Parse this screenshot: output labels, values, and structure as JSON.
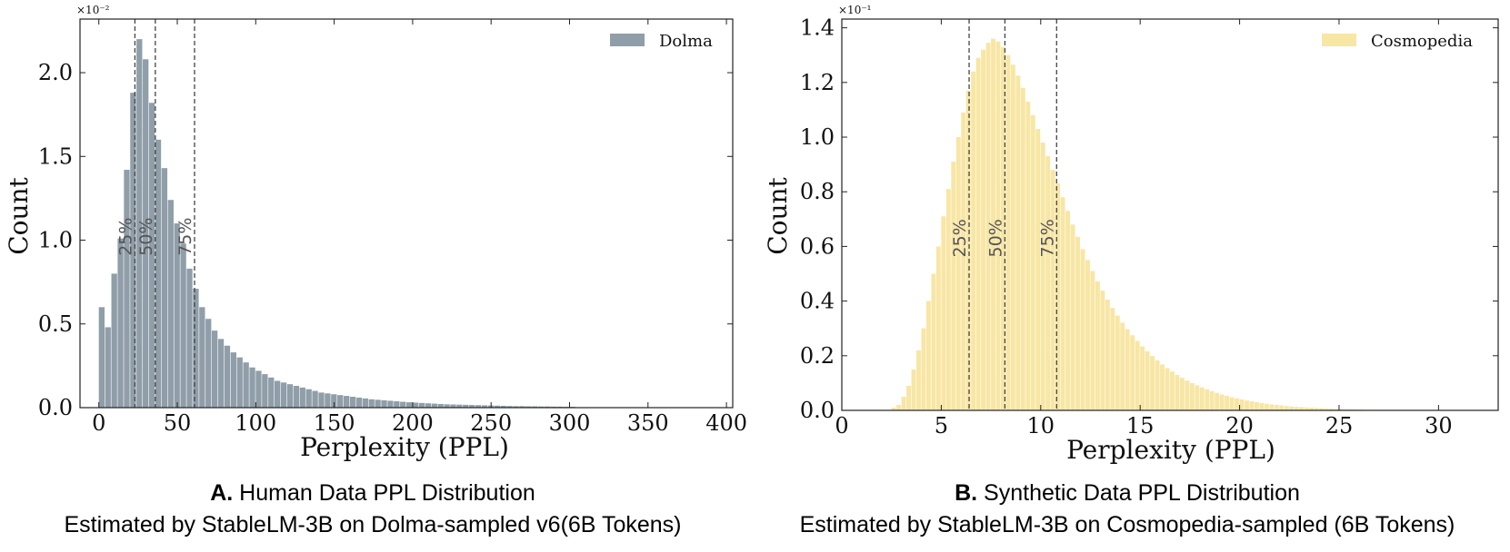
{
  "chart_data": [
    {
      "type": "bar",
      "legend": "Dolma",
      "legend_position": "top-right",
      "color": "#8f9ea8",
      "xlabel": "Perplexity (PPL)",
      "ylabel": "Count",
      "y_multiplier": "×10⁻²",
      "xlim": [
        -12,
        404
      ],
      "ylim": [
        0,
        0.0232
      ],
      "x_ticks": [
        0,
        50,
        100,
        150,
        200,
        250,
        300,
        350,
        400
      ],
      "y_ticks": [
        0.0,
        0.5,
        1.0,
        1.5,
        2.0
      ],
      "y_tick_scale": 0.01,
      "bin_start": 0,
      "bin_width": 4,
      "values": [
        0.006,
        0.0048,
        0.008,
        0.0101,
        0.0142,
        0.0188,
        0.022,
        0.0208,
        0.0182,
        0.016,
        0.0143,
        0.0124,
        0.011,
        0.0098,
        0.0083,
        0.0071,
        0.006,
        0.0053,
        0.0046,
        0.0041,
        0.0037,
        0.0033,
        0.003,
        0.0027,
        0.0024,
        0.0022,
        0.002,
        0.0018,
        0.0016,
        0.0015,
        0.0014,
        0.0013,
        0.0012,
        0.0011,
        0.001,
        0.0009,
        0.00085,
        0.0008,
        0.00075,
        0.0007,
        0.00065,
        0.0006,
        0.00055,
        0.0005,
        0.00047,
        0.00044,
        0.00041,
        0.00038,
        0.00035,
        0.00032,
        0.0003,
        0.00028,
        0.00026,
        0.00024,
        0.00022,
        0.0002,
        0.00019,
        0.00018,
        0.00017,
        0.00016,
        0.00015,
        0.00014,
        0.00013,
        0.00012,
        0.00011,
        0.0001,
        9e-05,
        9e-05,
        8e-05,
        8e-05,
        7e-05,
        7e-05,
        6e-05,
        6e-05,
        5e-05,
        5e-05
      ],
      "quantiles": [
        {
          "label": "25%",
          "x": 23
        },
        {
          "label": "50%",
          "x": 36
        },
        {
          "label": "75%",
          "x": 61
        }
      ],
      "caption_letter": "A.",
      "caption_title": "Human Data PPL Distribution",
      "caption_sub": "Estimated by StableLM-3B on Dolma-sampled v6(6B Tokens)"
    },
    {
      "type": "bar",
      "legend": "Cosmopedia",
      "legend_position": "top-right",
      "color": "#f8e6a4",
      "xlabel": "Perplexity (PPL)",
      "ylabel": "Count",
      "y_multiplier": "×10⁻¹",
      "xlim": [
        0,
        33
      ],
      "ylim": [
        0,
        0.1432
      ],
      "x_ticks": [
        0,
        5,
        10,
        15,
        20,
        25,
        30
      ],
      "y_ticks": [
        0.0,
        0.2,
        0.4,
        0.6,
        0.8,
        1.0,
        1.2,
        1.4
      ],
      "y_tick_scale": 0.1,
      "bin_start": 2.5,
      "bin_width": 0.25,
      "values": [
        0.001,
        0.002,
        0.005,
        0.009,
        0.015,
        0.022,
        0.03,
        0.04,
        0.05,
        0.06,
        0.071,
        0.081,
        0.091,
        0.1,
        0.109,
        0.117,
        0.124,
        0.129,
        0.132,
        0.1345,
        0.136,
        0.135,
        0.133,
        0.13,
        0.1265,
        0.1225,
        0.118,
        0.113,
        0.108,
        0.103,
        0.098,
        0.093,
        0.088,
        0.083,
        0.078,
        0.073,
        0.068,
        0.0635,
        0.059,
        0.055,
        0.051,
        0.0472,
        0.0438,
        0.0405,
        0.0375,
        0.0347,
        0.0321,
        0.0297,
        0.0275,
        0.0254,
        0.0234,
        0.0216,
        0.0199,
        0.0183,
        0.0168,
        0.0155,
        0.0142,
        0.013,
        0.0119,
        0.0109,
        0.01,
        0.0092,
        0.0084,
        0.0077,
        0.007,
        0.0064,
        0.0058,
        0.0053,
        0.0048,
        0.0044,
        0.004,
        0.0036,
        0.0033,
        0.003,
        0.0027,
        0.0024,
        0.0022,
        0.002,
        0.0018,
        0.0016,
        0.0014,
        0.0013,
        0.0012,
        0.0011,
        0.001,
        0.0009,
        0.0008,
        0.0007,
        0.0006,
        0.0005,
        0.0005,
        0.0004,
        0.0004,
        0.0003,
        0.0003,
        0.0002,
        0.0002,
        0.0002,
        0.0001,
        0.0001,
        0.0001
      ],
      "quantiles": [
        {
          "label": "25%",
          "x": 6.4
        },
        {
          "label": "50%",
          "x": 8.2
        },
        {
          "label": "75%",
          "x": 10.8
        }
      ],
      "caption_letter": "B.",
      "caption_title": "Synthetic Data PPL Distribution",
      "caption_sub": "Estimated by StableLM-3B on Cosmopedia-sampled (6B Tokens)"
    }
  ]
}
